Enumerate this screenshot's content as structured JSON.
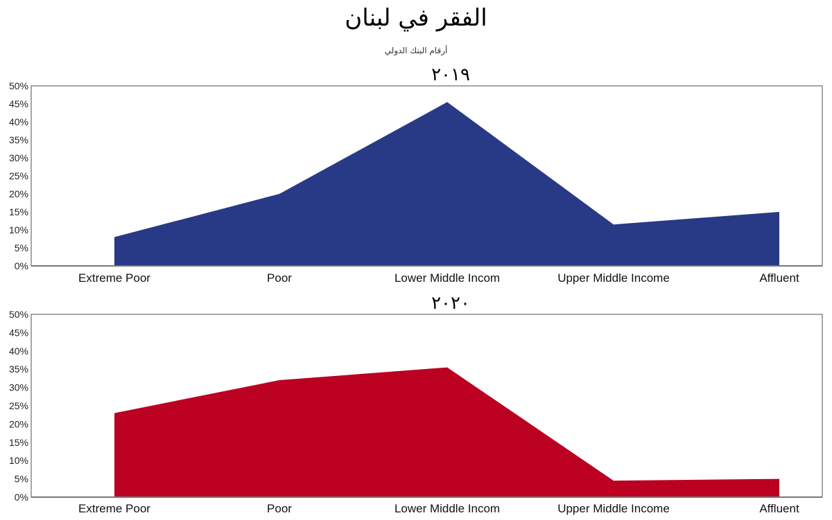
{
  "header": {
    "title": "الفقر في لبنان",
    "subtitle": "أرقام البنك الدولي"
  },
  "chart_data": [
    {
      "type": "area",
      "title": "٢٠١٩",
      "categories": [
        "Extreme Poor",
        "Poor",
        "Lower Middle Incom",
        "Upper Middle Income",
        "Affluent"
      ],
      "series": [
        {
          "values": [
            8,
            20,
            45.5,
            11.5,
            15
          ],
          "color": "#283a85"
        }
      ],
      "ylim": [
        0,
        50
      ],
      "yticks": [
        "0%",
        "5%",
        "10%",
        "15%",
        "20%",
        "25%",
        "30%",
        "35%",
        "40%",
        "45%",
        "50%"
      ],
      "grid": false
    },
    {
      "type": "area",
      "title": "٢٠٢٠",
      "categories": [
        "Extreme Poor",
        "Poor",
        "Lower Middle Incom",
        "Upper Middle Income",
        "Affluent"
      ],
      "series": [
        {
          "values": [
            23,
            32,
            35.5,
            4.5,
            5
          ],
          "color": "#bb0022"
        }
      ],
      "ylim": [
        0,
        50
      ],
      "yticks": [
        "0%",
        "5%",
        "10%",
        "15%",
        "20%",
        "25%",
        "30%",
        "35%",
        "40%",
        "45%",
        "50%"
      ],
      "grid": false
    }
  ]
}
